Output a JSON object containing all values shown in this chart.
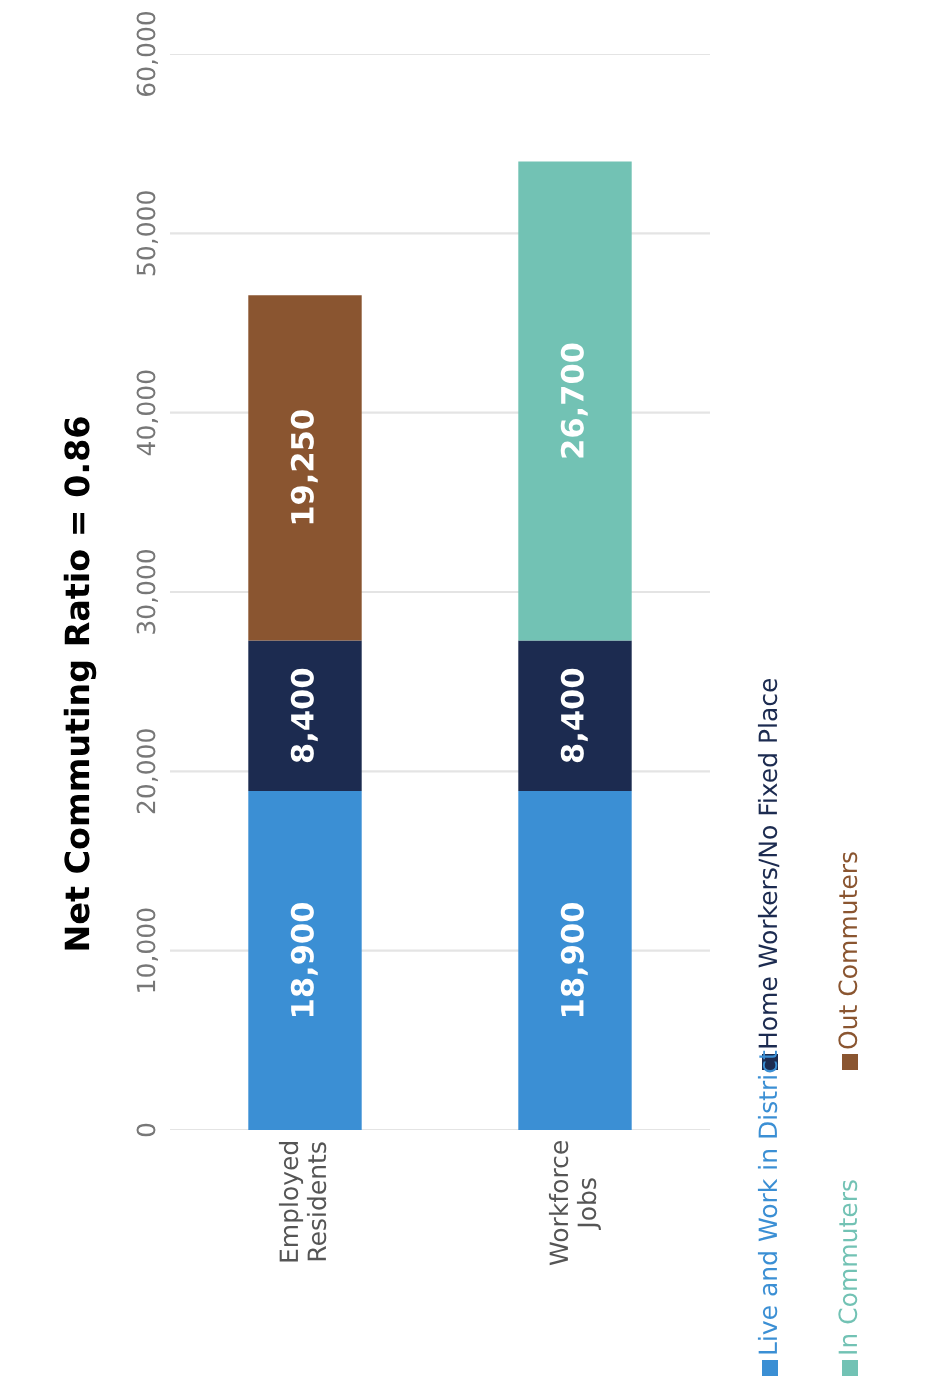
{
  "chart_data": {
    "type": "bar",
    "title": "Net Commuting Ratio = 0.86",
    "stacked": true,
    "categories": [
      "Employed Residents",
      "Workforce Jobs"
    ],
    "series": [
      {
        "name": "Live and Work in District",
        "color": "#3b8fd4",
        "values": [
          18900,
          18900
        ],
        "value_labels": [
          "18,900",
          "18,900"
        ]
      },
      {
        "name": "Home Workers/No Fixed Place",
        "color": "#1c2b50",
        "values": [
          8400,
          8400
        ],
        "value_labels": [
          "8,400",
          "8,400"
        ]
      },
      {
        "name": "In Commuters",
        "color": "#72c2b4",
        "values": [
          null,
          26700
        ],
        "value_labels": [
          null,
          "26,700"
        ]
      },
      {
        "name": "Out Commuters",
        "color": "#8a5530",
        "values": [
          19250,
          null
        ],
        "value_labels": [
          "19,250",
          null
        ]
      }
    ],
    "ylim": [
      0,
      60000
    ],
    "yticks": [
      {
        "value": 0,
        "label": "0"
      },
      {
        "value": 10000,
        "label": "10,000"
      },
      {
        "value": 20000,
        "label": "20,000"
      },
      {
        "value": 30000,
        "label": "30,000"
      },
      {
        "value": 40000,
        "label": "40,000"
      },
      {
        "value": 50000,
        "label": "50,000"
      },
      {
        "value": 60000,
        "label": "60,000"
      }
    ],
    "grid": "y",
    "legend": "bottom right"
  }
}
